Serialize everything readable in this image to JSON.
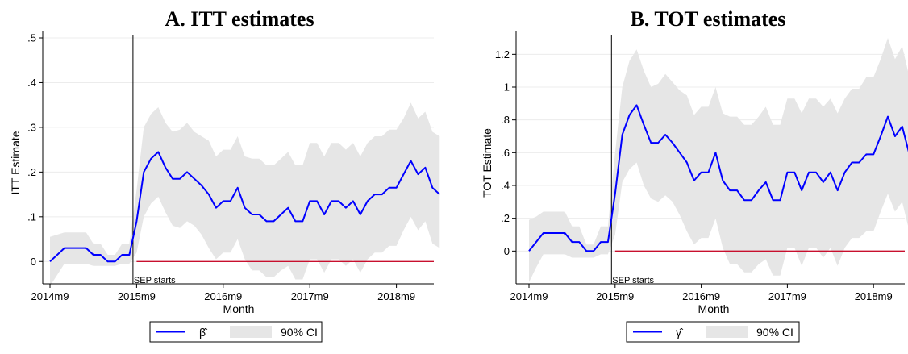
{
  "chart_data": [
    {
      "type": "line",
      "title": "A. ITT estimates",
      "xlabel": "Month",
      "ylabel": "ITT Estimate",
      "ylim": [
        -0.05,
        0.5
      ],
      "yticks": [
        {
          "v": 0,
          "label": "0"
        },
        {
          "v": 0.1,
          "label": ".1"
        },
        {
          "v": 0.2,
          "label": ".2"
        },
        {
          "v": 0.3,
          "label": ".3"
        },
        {
          "v": 0.4,
          "label": ".4"
        },
        {
          "v": 0.5,
          "label": ".5"
        }
      ],
      "xticks": [
        {
          "i": 0,
          "label": "2014m9"
        },
        {
          "i": 12,
          "label": "2015m9"
        },
        {
          "i": 24,
          "label": "2016m9"
        },
        {
          "i": 36,
          "label": "2017m9"
        },
        {
          "i": 48,
          "label": "2018m9"
        }
      ],
      "x_start": "2014m9",
      "event": {
        "i": 12,
        "label": "SEP starts"
      },
      "grid": true,
      "reference_line_y": 0,
      "legend": {
        "position": "bottom-center",
        "series_label": "β̂",
        "band_label": "90% CI"
      },
      "series": [
        {
          "name": "β̂",
          "color": "#0000ff",
          "values": [
            0,
            0.015,
            0.03,
            0.03,
            0.03,
            0.03,
            0.015,
            0.015,
            0,
            0,
            0.015,
            0.015,
            0.09,
            0.2,
            0.23,
            0.245,
            0.21,
            0.185,
            0.185,
            0.2,
            0.185,
            0.17,
            0.15,
            0.12,
            0.135,
            0.135,
            0.165,
            0.12,
            0.105,
            0.105,
            0.09,
            0.09,
            0.105,
            0.12,
            0.09,
            0.09,
            0.135,
            0.135,
            0.105,
            0.135,
            0.135,
            0.12,
            0.135,
            0.105,
            0.135,
            0.15,
            0.15,
            0.165,
            0.165,
            0.195,
            0.225,
            0.195,
            0.21,
            0.165,
            0.15
          ]
        }
      ],
      "ci90": {
        "color": "#e6e6e6",
        "lower": [
          -0.055,
          -0.03,
          -0.005,
          -0.005,
          -0.005,
          -0.005,
          -0.01,
          -0.01,
          -0.01,
          -0.01,
          -0.005,
          -0.005,
          0.02,
          0.1,
          0.13,
          0.145,
          0.11,
          0.08,
          0.075,
          0.09,
          0.08,
          0.06,
          0.03,
          0.005,
          0.02,
          0.02,
          0.05,
          0.005,
          -0.02,
          -0.02,
          -0.035,
          -0.035,
          -0.02,
          -0.01,
          -0.04,
          -0.04,
          0.005,
          0.005,
          -0.025,
          0.005,
          0.005,
          -0.01,
          0.005,
          -0.025,
          0.005,
          0.02,
          0.02,
          0.035,
          0.035,
          0.07,
          0.1,
          0.07,
          0.09,
          0.04,
          0.03
        ],
        "upper": [
          0.055,
          0.06,
          0.065,
          0.065,
          0.065,
          0.065,
          0.04,
          0.04,
          0.015,
          0.015,
          0.04,
          0.04,
          0.16,
          0.3,
          0.33,
          0.345,
          0.31,
          0.29,
          0.295,
          0.31,
          0.29,
          0.28,
          0.27,
          0.235,
          0.25,
          0.25,
          0.28,
          0.235,
          0.23,
          0.23,
          0.215,
          0.215,
          0.23,
          0.245,
          0.215,
          0.215,
          0.265,
          0.265,
          0.235,
          0.265,
          0.265,
          0.25,
          0.265,
          0.235,
          0.265,
          0.28,
          0.28,
          0.295,
          0.295,
          0.32,
          0.355,
          0.32,
          0.335,
          0.29,
          0.28
        ]
      }
    },
    {
      "type": "line",
      "title": "B. TOT estimates",
      "xlabel": "Month",
      "ylabel": "TOT Estimate",
      "ylim": [
        -0.2,
        1.3
      ],
      "yticks": [
        {
          "v": 0,
          "label": "0"
        },
        {
          "v": 0.2,
          "label": ".2"
        },
        {
          "v": 0.4,
          "label": ".4"
        },
        {
          "v": 0.6,
          "label": ".6"
        },
        {
          "v": 0.8,
          "label": ".8"
        },
        {
          "v": 1,
          "label": "1"
        },
        {
          "v": 1.2,
          "label": "1.2"
        }
      ],
      "xticks": [
        {
          "i": 0,
          "label": "2014m9"
        },
        {
          "i": 12,
          "label": "2015m9"
        },
        {
          "i": 24,
          "label": "2016m9"
        },
        {
          "i": 36,
          "label": "2017m9"
        },
        {
          "i": 48,
          "label": "2018m9"
        }
      ],
      "x_start": "2014m9",
      "event": {
        "i": 12,
        "label": "SEP starts"
      },
      "grid": true,
      "reference_line_y": 0,
      "legend": {
        "position": "bottom-center",
        "series_label": "γ̂",
        "band_label": "90% CI"
      },
      "series": [
        {
          "name": "γ̂",
          "color": "#0000ff",
          "values": [
            0,
            0.055,
            0.11,
            0.11,
            0.11,
            0.11,
            0.055,
            0.055,
            0,
            0,
            0.055,
            0.055,
            0.35,
            0.71,
            0.83,
            0.89,
            0.77,
            0.66,
            0.66,
            0.71,
            0.66,
            0.6,
            0.54,
            0.43,
            0.48,
            0.48,
            0.6,
            0.43,
            0.37,
            0.37,
            0.31,
            0.31,
            0.37,
            0.42,
            0.31,
            0.31,
            0.48,
            0.48,
            0.37,
            0.48,
            0.48,
            0.42,
            0.48,
            0.37,
            0.48,
            0.54,
            0.54,
            0.59,
            0.59,
            0.7,
            0.82,
            0.7,
            0.76,
            0.59,
            0.54
          ]
        }
      ],
      "ci90": {
        "color": "#e6e6e6",
        "lower": [
          -0.19,
          -0.1,
          -0.02,
          -0.02,
          -0.02,
          -0.02,
          -0.04,
          -0.04,
          -0.04,
          -0.04,
          -0.02,
          -0.02,
          0.1,
          0.42,
          0.5,
          0.54,
          0.4,
          0.32,
          0.3,
          0.34,
          0.3,
          0.22,
          0.12,
          0.04,
          0.08,
          0.08,
          0.2,
          0.02,
          -0.08,
          -0.08,
          -0.13,
          -0.13,
          -0.08,
          -0.05,
          -0.15,
          -0.15,
          0.02,
          0.02,
          -0.09,
          0.02,
          0.02,
          -0.04,
          0.02,
          -0.09,
          0.02,
          0.08,
          0.08,
          0.12,
          0.12,
          0.24,
          0.35,
          0.24,
          0.3,
          0.12,
          0.08
        ],
        "upper": [
          0.19,
          0.21,
          0.24,
          0.24,
          0.24,
          0.24,
          0.15,
          0.15,
          0.04,
          0.04,
          0.15,
          0.15,
          0.6,
          1.0,
          1.16,
          1.23,
          1.1,
          1.0,
          1.02,
          1.08,
          1.03,
          0.98,
          0.95,
          0.83,
          0.88,
          0.88,
          1.0,
          0.84,
          0.82,
          0.82,
          0.77,
          0.77,
          0.82,
          0.88,
          0.77,
          0.77,
          0.93,
          0.93,
          0.84,
          0.93,
          0.93,
          0.88,
          0.93,
          0.84,
          0.93,
          0.99,
          0.99,
          1.06,
          1.06,
          1.17,
          1.3,
          1.17,
          1.25,
          1.06,
          0.99
        ]
      }
    }
  ]
}
